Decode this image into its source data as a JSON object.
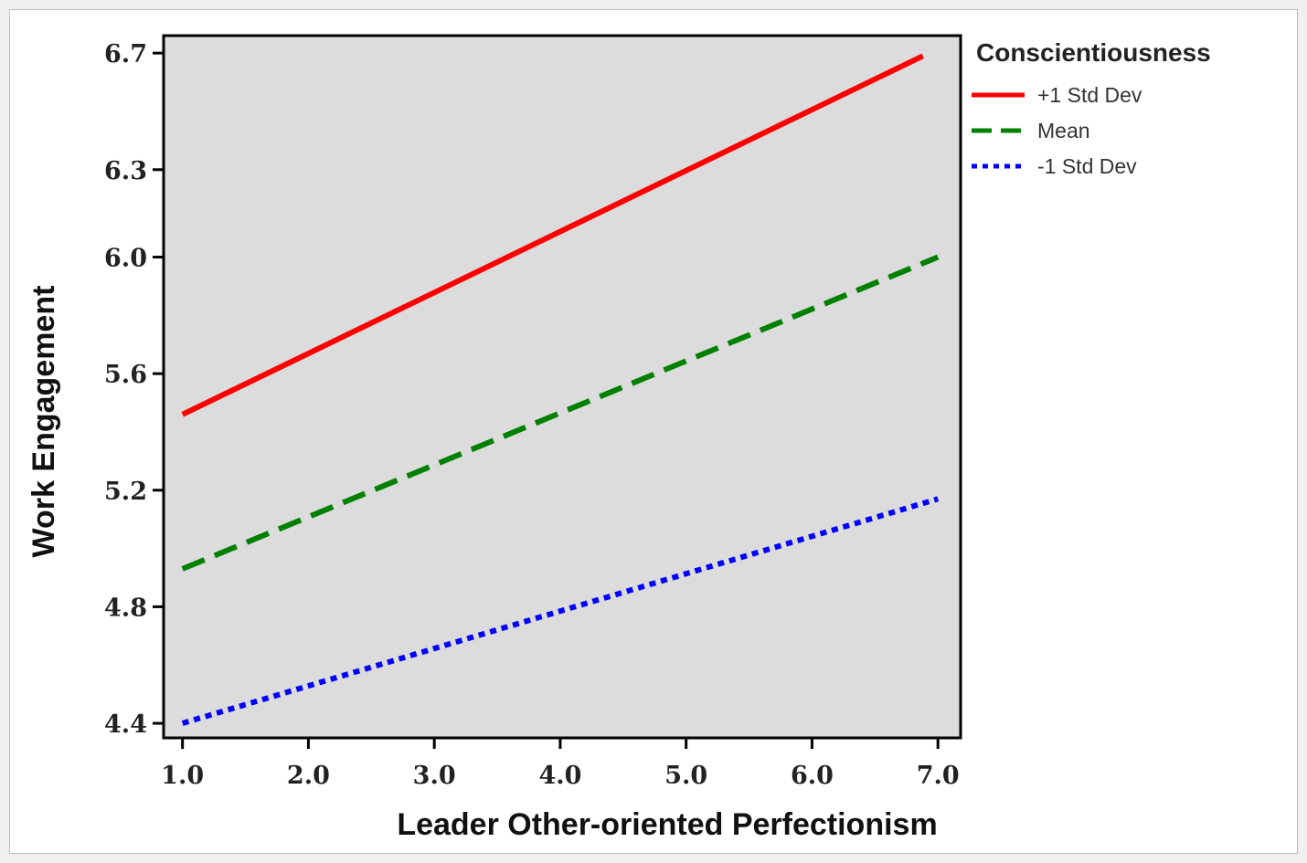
{
  "chart_data": {
    "type": "line",
    "xlabel": "Leader Other-oriented Perfectionism",
    "ylabel": "Work Engagement",
    "xlim": [
      0.85,
      7.18
    ],
    "ylim": [
      4.35,
      6.76
    ],
    "x_ticks": [
      "1.0",
      "2.0",
      "3.0",
      "4.0",
      "5.0",
      "6.0",
      "7.0"
    ],
    "y_ticks": [
      "4.4",
      "4.8",
      "5.2",
      "5.6",
      "6.0",
      "6.3",
      "6.7"
    ],
    "legend_title": "Conscientiousness",
    "legend_position": "right",
    "grid": false,
    "plot_background": "#dcdcdc",
    "series": [
      {
        "name": "+1 Std Dev",
        "color": "#ff0000",
        "style": "solid",
        "x": [
          1.0,
          6.88
        ],
        "y": [
          5.46,
          6.69
        ]
      },
      {
        "name": "Mean",
        "color": "#008000",
        "style": "dashed",
        "x": [
          1.0,
          7.0
        ],
        "y": [
          4.93,
          6.0
        ]
      },
      {
        "name": "-1 Std Dev",
        "color": "#0000ff",
        "style": "dotted",
        "x": [
          1.0,
          7.0
        ],
        "y": [
          4.4,
          5.17
        ]
      }
    ]
  }
}
